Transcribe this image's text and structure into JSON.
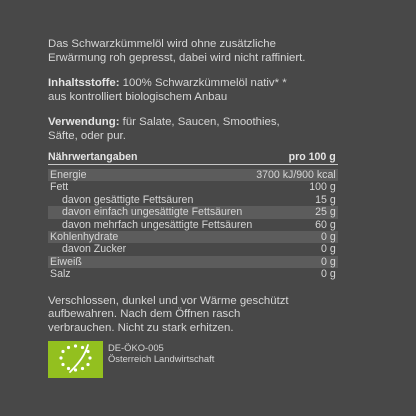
{
  "intro": "Das Schwarzkümmelöl wird ohne zusätzliche Erwärmung roh gepresst, dabei wird nicht raffiniert.",
  "ingredients": {
    "label": "Inhaltsstoffe:",
    "text": " 100% Schwarzkümmelöl nativ* * aus kontrolliert biologischem Anbau"
  },
  "usage": {
    "label": "Verwendung:",
    "text": " für Salate, Saucen, Smoothies, Säfte, oder pur."
  },
  "nutrition": {
    "header_label": "Nährwertangaben",
    "header_value": "pro 100 g",
    "rows": [
      {
        "label": "Energie",
        "value": "3700 kJ/900  kcal"
      },
      {
        "label": "Fett",
        "value": "100 g"
      },
      {
        "label": "davon gesättigte Fettsäuren",
        "value": "15 g"
      },
      {
        "label": "davon einfach ungesättigte Fettsäuren",
        "value": "25 g"
      },
      {
        "label": "davon mehrfach ungesättigte Fettsäuren",
        "value": "60 g"
      },
      {
        "label": "Kohlenhydrate",
        "value": "0 g"
      },
      {
        "label": "davon Zucker",
        "value": "0 g"
      },
      {
        "label": "Eiweiß",
        "value": "0 g"
      },
      {
        "label": "Salz",
        "value": "0 g"
      }
    ]
  },
  "storage": "Verschlossen, dunkel und vor Wärme geschützt aufbewahren. Nach dem Öffnen rasch verbrauchen. Nicht zu stark erhitzen.",
  "organic": {
    "code": "DE-ÖKO-005",
    "origin": "Österreich Landwirtschaft"
  },
  "colors": {
    "background": "#484848",
    "text": "#d6d6d6",
    "row_shade": "#5c5c5c",
    "eu_organic_green": "#93c01f"
  }
}
